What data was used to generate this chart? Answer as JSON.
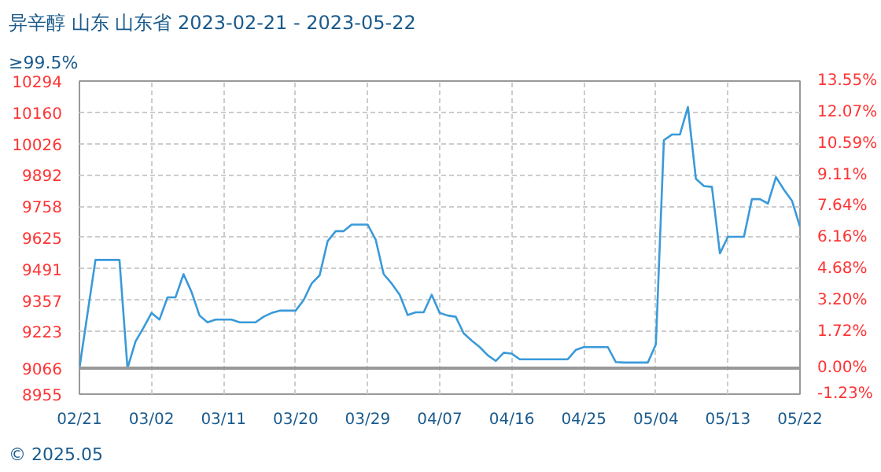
{
  "chart_data": {
    "type": "line",
    "title": "异辛醇 山东 山东省 2023-02-21 - 2023-05-22",
    "subtitle": "≥99.5%",
    "annotations": [
      "© 2025.05"
    ],
    "x": [
      "2023-02-21",
      "2023-02-23",
      "2023-02-24",
      "2023-02-25",
      "2023-02-26",
      "2023-02-27",
      "2023-02-28",
      "2023-03-01",
      "2023-03-02",
      "2023-03-03",
      "2023-03-04",
      "2023-03-05",
      "2023-03-06",
      "2023-03-07",
      "2023-03-08",
      "2023-03-09",
      "2023-03-10",
      "2023-03-11",
      "2023-03-12",
      "2023-03-13",
      "2023-03-14",
      "2023-03-15",
      "2023-03-16",
      "2023-03-17",
      "2023-03-18",
      "2023-03-19",
      "2023-03-20",
      "2023-03-21",
      "2023-03-22",
      "2023-03-23",
      "2023-03-24",
      "2023-03-25",
      "2023-03-26",
      "2023-03-27",
      "2023-03-28",
      "2023-03-29",
      "2023-03-30",
      "2023-03-31",
      "2023-04-01",
      "2023-04-02",
      "2023-04-03",
      "2023-04-04",
      "2023-04-05",
      "2023-04-06",
      "2023-04-07",
      "2023-04-08",
      "2023-04-09",
      "2023-04-10",
      "2023-04-11",
      "2023-04-12",
      "2023-04-13",
      "2023-04-14",
      "2023-04-15",
      "2023-04-16",
      "2023-04-17",
      "2023-04-18",
      "2023-04-19",
      "2023-04-20",
      "2023-04-21",
      "2023-04-22",
      "2023-04-23",
      "2023-04-24",
      "2023-04-25",
      "2023-04-26",
      "2023-04-27",
      "2023-04-28",
      "2023-04-29",
      "2023-04-30",
      "2023-05-01",
      "2023-05-02",
      "2023-05-03",
      "2023-05-04",
      "2023-05-05",
      "2023-05-06",
      "2023-05-07",
      "2023-05-08",
      "2023-05-09",
      "2023-05-10",
      "2023-05-11",
      "2023-05-12",
      "2023-05-13",
      "2023-05-14",
      "2023-05-15",
      "2023-05-16",
      "2023-05-17",
      "2023-05-18",
      "2023-05-19",
      "2023-05-20",
      "2023-05-21",
      "2023-05-22"
    ],
    "series": [
      {
        "color": "#3a9ad9",
        "values": [
          9066,
          9529,
          9529,
          9529,
          9529,
          9066,
          9180,
          9239,
          9302,
          9274,
          9369,
          9369,
          9468,
          9392,
          9291,
          9262,
          9274,
          9274,
          9274,
          9262,
          9262,
          9262,
          9286,
          9302,
          9312,
          9312,
          9312,
          9357,
          9428,
          9463,
          9609,
          9652,
          9652,
          9680,
          9680,
          9680,
          9616,
          9468,
          9428,
          9380,
          9293,
          9305,
          9305,
          9380,
          9302,
          9291,
          9286,
          9215,
          9184,
          9156,
          9121,
          9097,
          9132,
          9128,
          9104,
          9104,
          9104,
          9104,
          9104,
          9104,
          9104,
          9144,
          9156,
          9156,
          9156,
          9156,
          9092,
          9090,
          9090,
          9090,
          9090,
          9168,
          10041,
          10065,
          10065,
          10183,
          9876,
          9845,
          9841,
          9557,
          9628,
          9628,
          9628,
          9789,
          9789,
          9770,
          9883,
          9829,
          9782,
          9671
        ]
      }
    ],
    "xlim": [
      "2023-02-21",
      "2023-05-22"
    ],
    "xticks": [
      {
        "value": "2023-02-21",
        "label": "02/21"
      },
      {
        "value": "2023-03-02",
        "label": "03/02"
      },
      {
        "value": "2023-03-11",
        "label": "03/11"
      },
      {
        "value": "2023-03-20",
        "label": "03/20"
      },
      {
        "value": "2023-03-29",
        "label": "03/29"
      },
      {
        "value": "2023-04-07",
        "label": "04/07"
      },
      {
        "value": "2023-04-16",
        "label": "04/16"
      },
      {
        "value": "2023-04-25",
        "label": "04/25"
      },
      {
        "value": "2023-05-04",
        "label": "05/04"
      },
      {
        "value": "2023-05-13",
        "label": "05/13"
      },
      {
        "value": "2023-05-22",
        "label": "05/22"
      }
    ],
    "ylim": [
      8955,
      10294
    ],
    "yticks": [
      8955,
      9066,
      9223,
      9357,
      9491,
      9625,
      9758,
      9892,
      10026,
      10160,
      10294
    ],
    "y2lim": [
      -1.23,
      13.55
    ],
    "y2ticks": [
      {
        "value": -1.23,
        "label": "-1.23%"
      },
      {
        "value": 0,
        "label": "0.00%"
      },
      {
        "value": 1.72,
        "label": "1.72%"
      },
      {
        "value": 3.2,
        "label": "3.20%"
      },
      {
        "value": 4.68,
        "label": "4.68%"
      },
      {
        "value": 6.16,
        "label": "6.16%"
      },
      {
        "value": 7.64,
        "label": "7.64%"
      },
      {
        "value": 9.11,
        "label": "9.11%"
      },
      {
        "value": 10.59,
        "label": "10.59%"
      },
      {
        "value": 12.07,
        "label": "12.07%"
      },
      {
        "value": 13.55,
        "label": "13.55%"
      }
    ],
    "grid": true,
    "ref_lines": [
      {
        "axis": "y",
        "value": 9066,
        "color": "#999999"
      }
    ]
  }
}
